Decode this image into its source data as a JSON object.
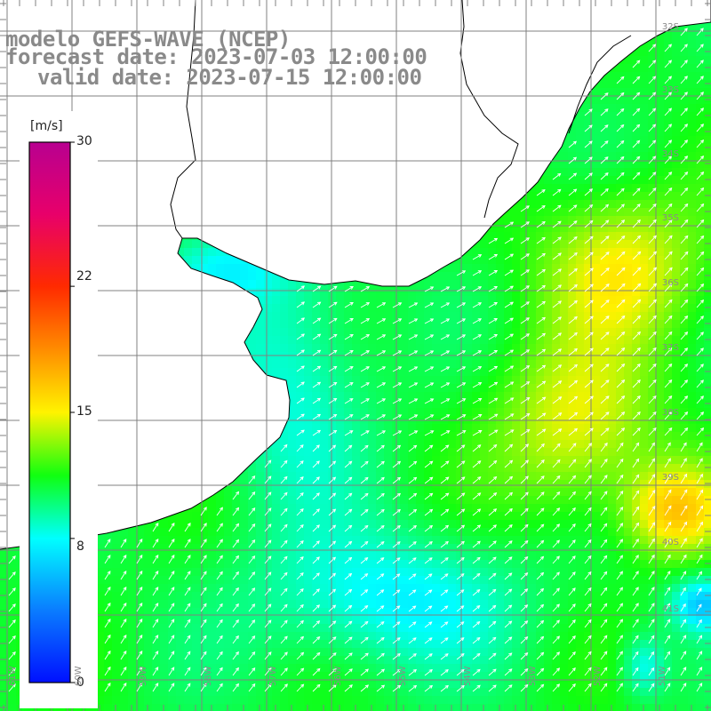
{
  "title": {
    "line1": "modelo GEFS-WAVE (NCEP)",
    "line2": "forecast date: 2023-07-03 12:00:00",
    "line3": "valid date: 2023-07-15 12:00:00"
  },
  "colorbar": {
    "unit_label": "[m/s]",
    "ticks": [
      "30",
      "22",
      "15",
      "8",
      "0"
    ],
    "tick_values": [
      30,
      22,
      15,
      8,
      0
    ],
    "range": [
      0,
      30
    ],
    "stops": [
      {
        "v": 0,
        "color": "#0010ff"
      },
      {
        "v": 4,
        "color": "#0a7cff"
      },
      {
        "v": 8,
        "color": "#00ffff"
      },
      {
        "v": 11.5,
        "color": "#10ff10"
      },
      {
        "v": 15,
        "color": "#fff300"
      },
      {
        "v": 18.5,
        "color": "#ff8c00"
      },
      {
        "v": 22,
        "color": "#ff2a00"
      },
      {
        "v": 26,
        "color": "#e8006a"
      },
      {
        "v": 30,
        "color": "#b80090"
      }
    ]
  },
  "map": {
    "variable": "wind speed",
    "land_color": "#ffffff",
    "coastline_color": "#000000",
    "grid_color": "#808080",
    "arrow_color": "#ffffff",
    "wind_direction": "toward north-east",
    "lat_labels": [
      "32S",
      "33S",
      "34S",
      "35S",
      "36S",
      "37S",
      "38S",
      "39S",
      "40S",
      "41S"
    ],
    "lon_labels": [
      "61W",
      "60W",
      "59W",
      "58W",
      "57W",
      "56W",
      "55W",
      "54W",
      "53W",
      "52W",
      "51W"
    ]
  }
}
